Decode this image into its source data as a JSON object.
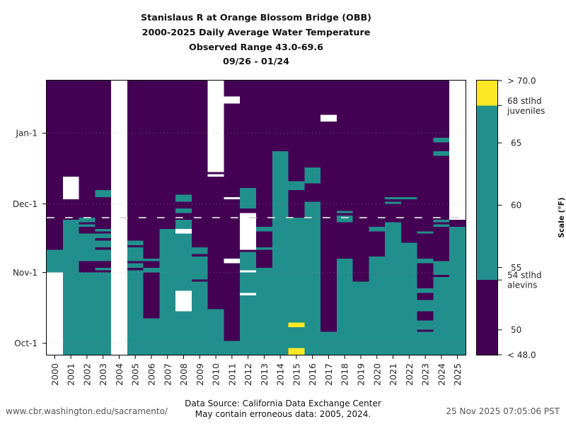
{
  "footer": {
    "url": "www.cbr.washington.edu/sacramento/",
    "source_line1": "Data Source: California Data Exchange Center",
    "source_line2": "May contain erroneous data: 2005, 2024.",
    "timestamp": "25 Nov 2025 07:05:06 PST"
  },
  "chart_data": {
    "type": "heatmap",
    "title_lines": [
      "Stanislaus R at Orange Blossom Bridge (OBB)",
      "2000-2025 Daily Average Water Temperature",
      "Observed Range 43.0-69.6",
      "09/26 - 01/24"
    ],
    "xlabel": "",
    "ylabel": "",
    "y_axis": {
      "start_date": "09/26",
      "end_date": "01/24",
      "units": "days since 09/26",
      "range": [
        0,
        120
      ],
      "grid": "dotted",
      "ticks": [
        {
          "label": "Oct-1",
          "day": 5
        },
        {
          "label": "Nov-1",
          "day": 36
        },
        {
          "label": "Dec-1",
          "day": 66
        },
        {
          "label": "Jan-1",
          "day": 97
        }
      ]
    },
    "current_date_marker": {
      "date": "11/25",
      "day": 60,
      "style": "dashed"
    },
    "bins": [
      {
        "key": "below_54",
        "range_f": [
          48,
          54
        ],
        "color": "#440154"
      },
      {
        "key": "54_to_68",
        "range_f": [
          54,
          68
        ],
        "color": "#21908d"
      },
      {
        "key": "above_68",
        "range_f": [
          68,
          70
        ],
        "color": "#fde725"
      },
      {
        "key": "no_data",
        "color": "#ffffff"
      }
    ],
    "colorbar": {
      "label": "Scale (°F)",
      "range": [
        48,
        70
      ],
      "segments": [
        {
          "from": 48,
          "to": 54,
          "bin": "below_54"
        },
        {
          "from": 54,
          "to": 68,
          "bin": "54_to_68"
        },
        {
          "from": 68,
          "to": 70,
          "bin": "above_68"
        }
      ],
      "ticks": [
        {
          "value": 70,
          "lines": [
            "> 70.0"
          ]
        },
        {
          "value": 68,
          "lines": [
            "68 stlhd",
            "juveniles"
          ]
        },
        {
          "value": 65,
          "lines": [
            "65"
          ]
        },
        {
          "value": 60,
          "lines": [
            "60"
          ]
        },
        {
          "value": 55,
          "lines": [
            "55"
          ]
        },
        {
          "value": 54,
          "lines": [
            "54 stlhd",
            "alevins"
          ]
        },
        {
          "value": 50,
          "lines": [
            "50"
          ]
        },
        {
          "value": 48,
          "lines": [
            "< 48.0"
          ]
        }
      ]
    },
    "columns": [
      {
        "year": "2000",
        "segments": [
          [
            0,
            36,
            "no_data"
          ],
          [
            36,
            46,
            "54_to_68"
          ],
          [
            46,
            120,
            "below_54"
          ]
        ]
      },
      {
        "year": "2001",
        "segments": [
          [
            0,
            59,
            "54_to_68"
          ],
          [
            59,
            68,
            "below_54"
          ],
          [
            68,
            78,
            "no_data"
          ],
          [
            78,
            120,
            "below_54"
          ]
        ]
      },
      {
        "year": "2002",
        "segments": [
          [
            0,
            36,
            "54_to_68"
          ],
          [
            36,
            41,
            "below_54"
          ],
          [
            41,
            53,
            "54_to_68"
          ],
          [
            53,
            56,
            "below_54"
          ],
          [
            56,
            57,
            "54_to_68"
          ],
          [
            57,
            58,
            "below_54"
          ],
          [
            58,
            60,
            "54_to_68"
          ],
          [
            60,
            120,
            "below_54"
          ]
        ]
      },
      {
        "year": "2003",
        "segments": [
          [
            0,
            36,
            "54_to_68"
          ],
          [
            36,
            37,
            "below_54"
          ],
          [
            37,
            38,
            "54_to_68"
          ],
          [
            38,
            41,
            "below_54"
          ],
          [
            41,
            46,
            "54_to_68"
          ],
          [
            46,
            47,
            "below_54"
          ],
          [
            47,
            50,
            "54_to_68"
          ],
          [
            50,
            51,
            "below_54"
          ],
          [
            51,
            53,
            "54_to_68"
          ],
          [
            53,
            54,
            "below_54"
          ],
          [
            54,
            55,
            "54_to_68"
          ],
          [
            55,
            69,
            "below_54"
          ],
          [
            69,
            72,
            "54_to_68"
          ],
          [
            72,
            120,
            "below_54"
          ]
        ]
      },
      {
        "year": "2004",
        "segments": [
          [
            0,
            120,
            "no_data"
          ]
        ]
      },
      {
        "year": "2005",
        "segments": [
          [
            0,
            37,
            "54_to_68"
          ],
          [
            37,
            38,
            "below_54"
          ],
          [
            38,
            40,
            "54_to_68"
          ],
          [
            40,
            41,
            "below_54"
          ],
          [
            41,
            47,
            "54_to_68"
          ],
          [
            47,
            48,
            "below_54"
          ],
          [
            48,
            50,
            "54_to_68"
          ],
          [
            50,
            120,
            "below_54"
          ]
        ]
      },
      {
        "year": "2006",
        "segments": [
          [
            0,
            16,
            "54_to_68"
          ],
          [
            16,
            36,
            "below_54"
          ],
          [
            36,
            38,
            "54_to_68"
          ],
          [
            38,
            41,
            "below_54"
          ],
          [
            41,
            42,
            "54_to_68"
          ],
          [
            42,
            120,
            "below_54"
          ]
        ]
      },
      {
        "year": "2007",
        "segments": [
          [
            0,
            55,
            "54_to_68"
          ],
          [
            55,
            120,
            "below_54"
          ]
        ]
      },
      {
        "year": "2008",
        "segments": [
          [
            0,
            19,
            "54_to_68"
          ],
          [
            19,
            28,
            "no_data"
          ],
          [
            28,
            53,
            "54_to_68"
          ],
          [
            53,
            55,
            "no_data"
          ],
          [
            55,
            59,
            "54_to_68"
          ],
          [
            59,
            62,
            "below_54"
          ],
          [
            62,
            64,
            "54_to_68"
          ],
          [
            64,
            67,
            "below_54"
          ],
          [
            67,
            70,
            "54_to_68"
          ],
          [
            70,
            120,
            "below_54"
          ]
        ]
      },
      {
        "year": "2009",
        "segments": [
          [
            0,
            32,
            "54_to_68"
          ],
          [
            32,
            33,
            "below_54"
          ],
          [
            33,
            43,
            "54_to_68"
          ],
          [
            43,
            44,
            "below_54"
          ],
          [
            44,
            47,
            "54_to_68"
          ],
          [
            47,
            120,
            "below_54"
          ]
        ]
      },
      {
        "year": "2010",
        "segments": [
          [
            0,
            20,
            "54_to_68"
          ],
          [
            20,
            78,
            "below_54"
          ],
          [
            78,
            79,
            "no_data"
          ],
          [
            79,
            80,
            "below_54"
          ],
          [
            80,
            120,
            "no_data"
          ]
        ]
      },
      {
        "year": "2011",
        "segments": [
          [
            0,
            6,
            "54_to_68"
          ],
          [
            6,
            40,
            "below_54"
          ],
          [
            40,
            42,
            "no_data"
          ],
          [
            42,
            68,
            "below_54"
          ],
          [
            68,
            69,
            "no_data"
          ],
          [
            69,
            110,
            "below_54"
          ],
          [
            110,
            113,
            "no_data"
          ],
          [
            113,
            120,
            "below_54"
          ]
        ]
      },
      {
        "year": "2012",
        "segments": [
          [
            0,
            26,
            "54_to_68"
          ],
          [
            26,
            27,
            "no_data"
          ],
          [
            27,
            36,
            "54_to_68"
          ],
          [
            36,
            37,
            "no_data"
          ],
          [
            37,
            45,
            "54_to_68"
          ],
          [
            45,
            46,
            "below_54"
          ],
          [
            46,
            62,
            "no_data"
          ],
          [
            62,
            64,
            "below_54"
          ],
          [
            64,
            73,
            "54_to_68"
          ],
          [
            73,
            120,
            "below_54"
          ]
        ]
      },
      {
        "year": "2013",
        "segments": [
          [
            0,
            38,
            "54_to_68"
          ],
          [
            38,
            46,
            "below_54"
          ],
          [
            46,
            47,
            "54_to_68"
          ],
          [
            47,
            54,
            "below_54"
          ],
          [
            54,
            56,
            "54_to_68"
          ],
          [
            56,
            120,
            "below_54"
          ]
        ]
      },
      {
        "year": "2014",
        "segments": [
          [
            0,
            89,
            "54_to_68"
          ],
          [
            89,
            120,
            "below_54"
          ]
        ]
      },
      {
        "year": "2015",
        "segments": [
          [
            0,
            3,
            "above_68"
          ],
          [
            3,
            12,
            "54_to_68"
          ],
          [
            12,
            14,
            "above_68"
          ],
          [
            14,
            60,
            "54_to_68"
          ],
          [
            60,
            72,
            "below_54"
          ],
          [
            72,
            76,
            "54_to_68"
          ],
          [
            76,
            120,
            "below_54"
          ]
        ]
      },
      {
        "year": "2016",
        "segments": [
          [
            0,
            67,
            "54_to_68"
          ],
          [
            67,
            75,
            "below_54"
          ],
          [
            75,
            82,
            "54_to_68"
          ],
          [
            82,
            120,
            "below_54"
          ]
        ]
      },
      {
        "year": "2017",
        "segments": [
          [
            0,
            10,
            "54_to_68"
          ],
          [
            10,
            102,
            "below_54"
          ],
          [
            102,
            105,
            "no_data"
          ],
          [
            105,
            120,
            "below_54"
          ]
        ]
      },
      {
        "year": "2018",
        "segments": [
          [
            0,
            42,
            "54_to_68"
          ],
          [
            42,
            58,
            "below_54"
          ],
          [
            58,
            61,
            "54_to_68"
          ],
          [
            61,
            62,
            "below_54"
          ],
          [
            62,
            63,
            "54_to_68"
          ],
          [
            63,
            120,
            "below_54"
          ]
        ]
      },
      {
        "year": "2019",
        "segments": [
          [
            0,
            32,
            "54_to_68"
          ],
          [
            32,
            120,
            "below_54"
          ]
        ]
      },
      {
        "year": "2020",
        "segments": [
          [
            0,
            43,
            "54_to_68"
          ],
          [
            43,
            54,
            "below_54"
          ],
          [
            54,
            56,
            "54_to_68"
          ],
          [
            56,
            120,
            "below_54"
          ]
        ]
      },
      {
        "year": "2021",
        "segments": [
          [
            0,
            58,
            "54_to_68"
          ],
          [
            58,
            66,
            "below_54"
          ],
          [
            66,
            67,
            "54_to_68"
          ],
          [
            67,
            68,
            "below_54"
          ],
          [
            68,
            69,
            "54_to_68"
          ],
          [
            69,
            120,
            "below_54"
          ]
        ]
      },
      {
        "year": "2022",
        "segments": [
          [
            0,
            49,
            "54_to_68"
          ],
          [
            49,
            68,
            "below_54"
          ],
          [
            68,
            69,
            "54_to_68"
          ],
          [
            69,
            120,
            "below_54"
          ]
        ]
      },
      {
        "year": "2023",
        "segments": [
          [
            0,
            10,
            "54_to_68"
          ],
          [
            10,
            11,
            "below_54"
          ],
          [
            11,
            15,
            "54_to_68"
          ],
          [
            15,
            19,
            "below_54"
          ],
          [
            19,
            24,
            "54_to_68"
          ],
          [
            24,
            27,
            "below_54"
          ],
          [
            27,
            29,
            "54_to_68"
          ],
          [
            29,
            40,
            "below_54"
          ],
          [
            40,
            42,
            "54_to_68"
          ],
          [
            42,
            53,
            "below_54"
          ],
          [
            53,
            54,
            "54_to_68"
          ],
          [
            54,
            120,
            "below_54"
          ]
        ]
      },
      {
        "year": "2024",
        "segments": [
          [
            0,
            34,
            "54_to_68"
          ],
          [
            34,
            35,
            "below_54"
          ],
          [
            35,
            41,
            "54_to_68"
          ],
          [
            41,
            56,
            "below_54"
          ],
          [
            56,
            57,
            "54_to_68"
          ],
          [
            57,
            58,
            "below_54"
          ],
          [
            58,
            59,
            "54_to_68"
          ],
          [
            59,
            87,
            "below_54"
          ],
          [
            87,
            89,
            "54_to_68"
          ],
          [
            89,
            93,
            "below_54"
          ],
          [
            93,
            95,
            "54_to_68"
          ],
          [
            95,
            120,
            "below_54"
          ]
        ]
      },
      {
        "year": "2025",
        "segments": [
          [
            0,
            56,
            "54_to_68"
          ],
          [
            56,
            59,
            "below_54"
          ],
          [
            59,
            120,
            "no_data"
          ]
        ]
      }
    ]
  }
}
